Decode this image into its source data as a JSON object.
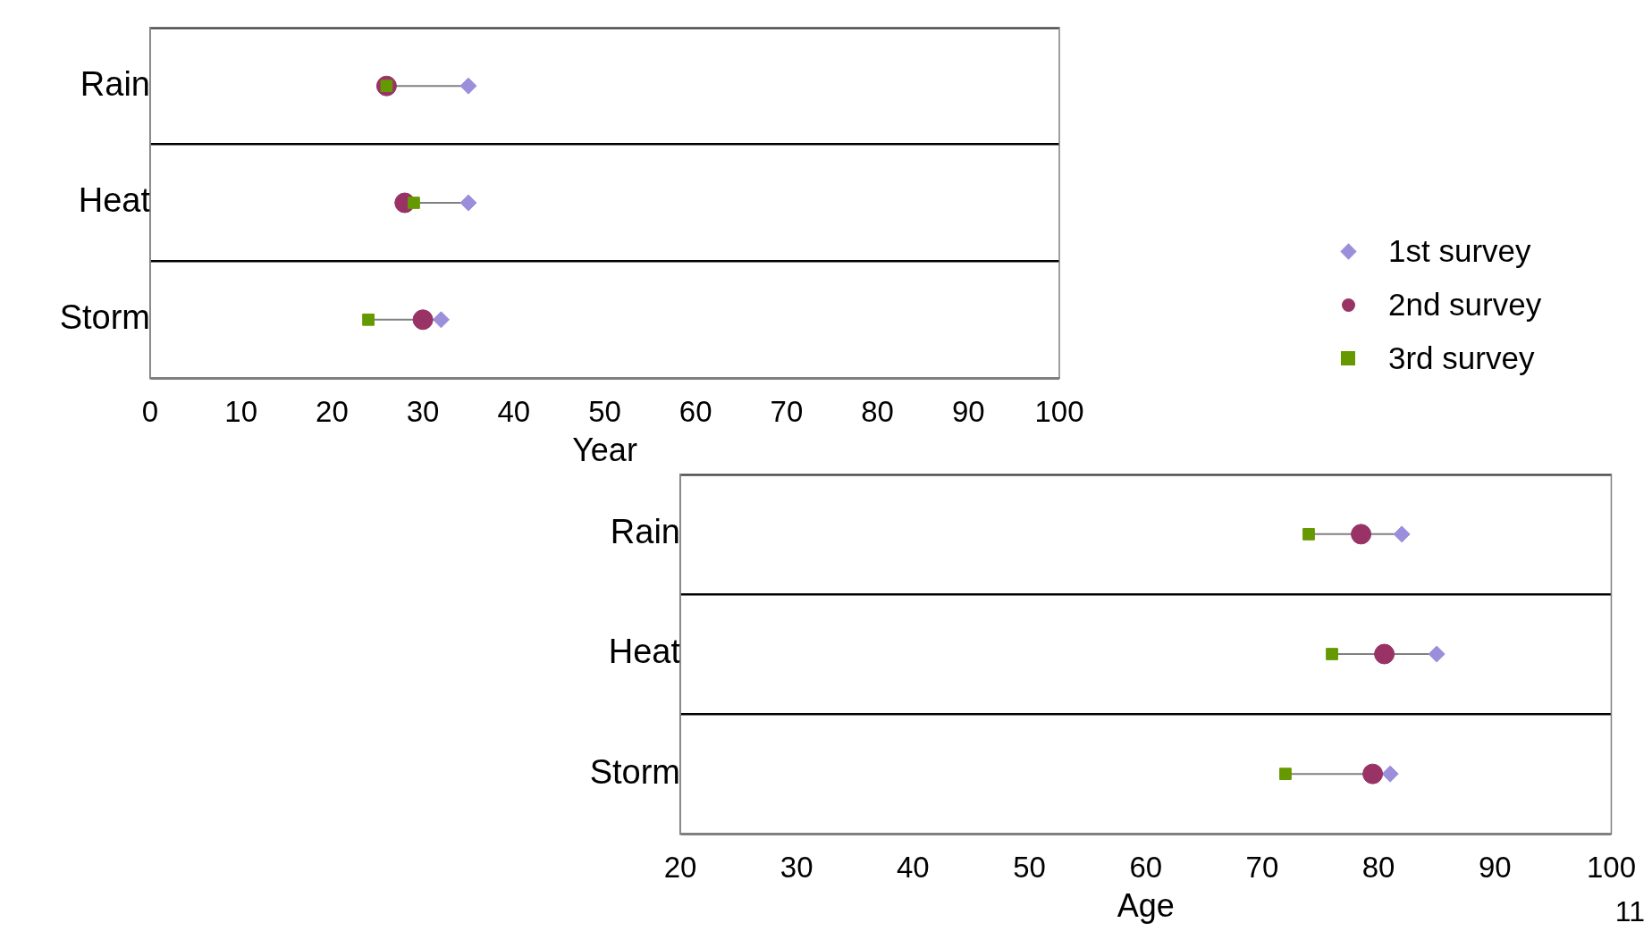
{
  "chart_data": [
    {
      "type": "scatter",
      "orientation": "horizontal",
      "categories": [
        "Rain",
        "Heat",
        "Storm"
      ],
      "xlabel": "Year",
      "xlim": [
        0,
        100
      ],
      "xticks": [
        0,
        10,
        20,
        30,
        40,
        50,
        60,
        70,
        80,
        90,
        100
      ],
      "grid": "y",
      "legend": "right",
      "series": [
        {
          "name": "1st survey",
          "color": "#9b8fdc",
          "marker": "diamond",
          "values": [
            35,
            35,
            32
          ]
        },
        {
          "name": "2nd survey",
          "color": "#993366",
          "marker": "circle",
          "values": [
            26,
            28,
            30
          ]
        },
        {
          "name": "3rd survey",
          "color": "#669900",
          "marker": "square",
          "values": [
            26,
            29,
            24
          ]
        }
      ]
    },
    {
      "type": "scatter",
      "orientation": "horizontal",
      "categories": [
        "Rain",
        "Heat",
        "Storm"
      ],
      "xlabel": "Age",
      "xlim": [
        20,
        100
      ],
      "xticks": [
        20,
        30,
        40,
        50,
        60,
        70,
        80,
        90,
        100
      ],
      "grid": "y",
      "annotations": [
        "11"
      ],
      "series": [
        {
          "color": "#9b8fdc",
          "marker": "diamond",
          "values": [
            82,
            85,
            81
          ]
        },
        {
          "color": "#993366",
          "marker": "circle",
          "values": [
            78.5,
            80.5,
            79.5
          ]
        },
        {
          "color": "#669900",
          "marker": "square",
          "values": [
            74,
            76,
            72
          ]
        }
      ]
    }
  ]
}
